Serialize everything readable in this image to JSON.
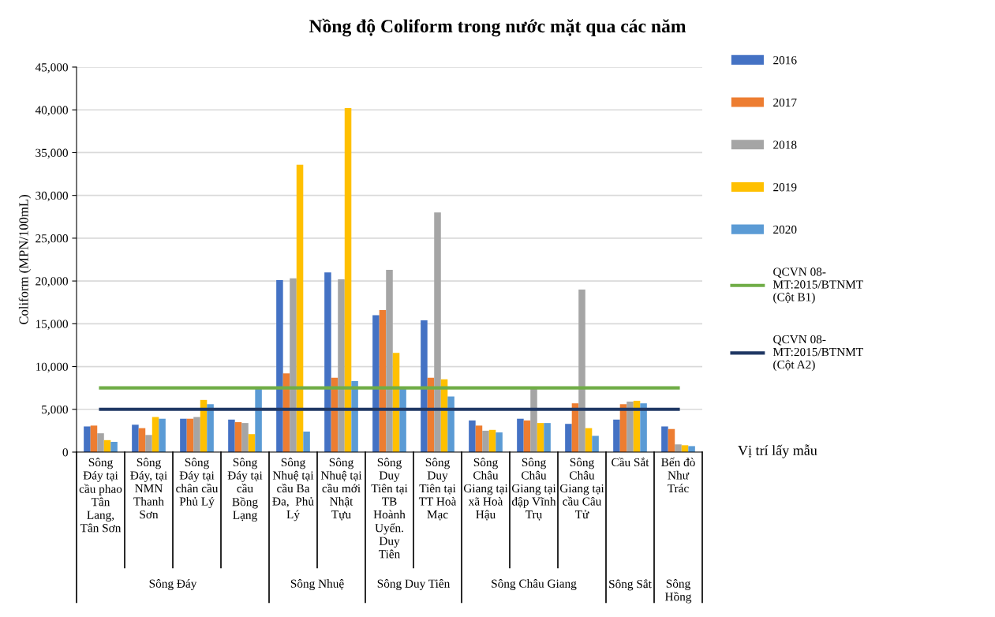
{
  "chart_data": {
    "type": "bar",
    "title": "Nồng độ Coliform trong nước mặt qua các năm",
    "ylabel": "Coliform (MPN/100mL)",
    "xlabel": "Vị trí lấy mẫu",
    "categories": [
      "Sông\nĐáy tại\ncầu phao\nTân\nLang,\nTân Sơn",
      "Sông\nĐáy, tại\nNMN\nThanh\nSơn",
      "Sông\nĐáy tại\nchân cầu\nPhủ Lý",
      "Sông\nĐáy tại\ncầu\nBồng\nLạng",
      "Sông\nNhuệ tại\ncầu Ba\nĐa,  Phủ\nLý",
      "Sông\nNhuệ tại\ncầu mới\nNhật\nTựu",
      "Sông\nDuy\nTiên tại\nTB\nHoành\nUyển.\nDuy\nTiên",
      "Sông\nDuy\nTiên tại\nTT Hoà\nMạc",
      "Sông\nChâu\nGiang tại\nxã Hoà\nHậu",
      "Sông\nChâu\nGiang tại\nđập Vĩnh\nTrụ",
      "Sông\nChâu\nGiang tại\ncầu Câu\nTử",
      "Cầu Sắt",
      "Bến đò\nNhư\nTrác"
    ],
    "annotations": [
      "Sông Đáy",
      "Sông Nhuệ",
      "Sông Duy Tiên",
      "Sông Châu Giang",
      "Sông Sắt",
      "Sông\nHồng"
    ],
    "series": [
      {
        "name": "2016",
        "color": "#4472c4",
        "values": [
          3000,
          3200,
          3900,
          3800,
          20100,
          21000,
          16000,
          15400,
          3700,
          3900,
          3300,
          3800,
          3000
        ]
      },
      {
        "name": "2017",
        "color": "#ed7d31",
        "values": [
          3100,
          2800,
          3900,
          3500,
          9200,
          8700,
          16600,
          8700,
          3100,
          3700,
          5700,
          5600,
          2700
        ]
      },
      {
        "name": "2018",
        "color": "#a5a5a5",
        "values": [
          2200,
          2000,
          4100,
          3400,
          20300,
          20200,
          21300,
          28000,
          2500,
          7500,
          19000,
          5900,
          900
        ]
      },
      {
        "name": "2019",
        "color": "#ffc000",
        "values": [
          1400,
          4100,
          6100,
          2100,
          33600,
          40200,
          11600,
          8500,
          2600,
          3400,
          2800,
          6000,
          800
        ]
      },
      {
        "name": "2020",
        "color": "#5b9bd5",
        "values": [
          1200,
          3900,
          5600,
          7500,
          2400,
          8300,
          7400,
          6500,
          2300,
          3400,
          1900,
          5700,
          700
        ]
      },
      {
        "name": "QCVN 08-\nMT:2015/BTNMT\n(Cột B1)",
        "type": "line",
        "color": "#70ad47",
        "values": [
          7500,
          7500,
          7500,
          7500,
          7500,
          7500,
          7500,
          7500,
          7500,
          7500,
          7500,
          7500,
          7500
        ]
      },
      {
        "name": "QCVN 08-\nMT:2015/BTNMT\n(Cột A2)",
        "type": "line",
        "color": "#203864",
        "values": [
          5000,
          5000,
          5000,
          5000,
          5000,
          5000,
          5000,
          5000,
          5000,
          5000,
          5000,
          5000,
          5000
        ]
      }
    ],
    "ylim": [
      0,
      45000
    ],
    "yticks": [
      {
        "value": 0,
        "label": "0"
      },
      {
        "value": 5000,
        "label": "5,000"
      },
      {
        "value": 10000,
        "label": "10,000"
      },
      {
        "value": 15000,
        "label": "15,000"
      },
      {
        "value": 20000,
        "label": "20,000"
      },
      {
        "value": 25000,
        "label": "25,000"
      },
      {
        "value": 30000,
        "label": "30,000"
      },
      {
        "value": 35000,
        "label": "35,000"
      },
      {
        "value": 40000,
        "label": "40,000"
      },
      {
        "value": 45000,
        "label": "45,000"
      }
    ],
    "grid": "y",
    "legend": "right"
  }
}
